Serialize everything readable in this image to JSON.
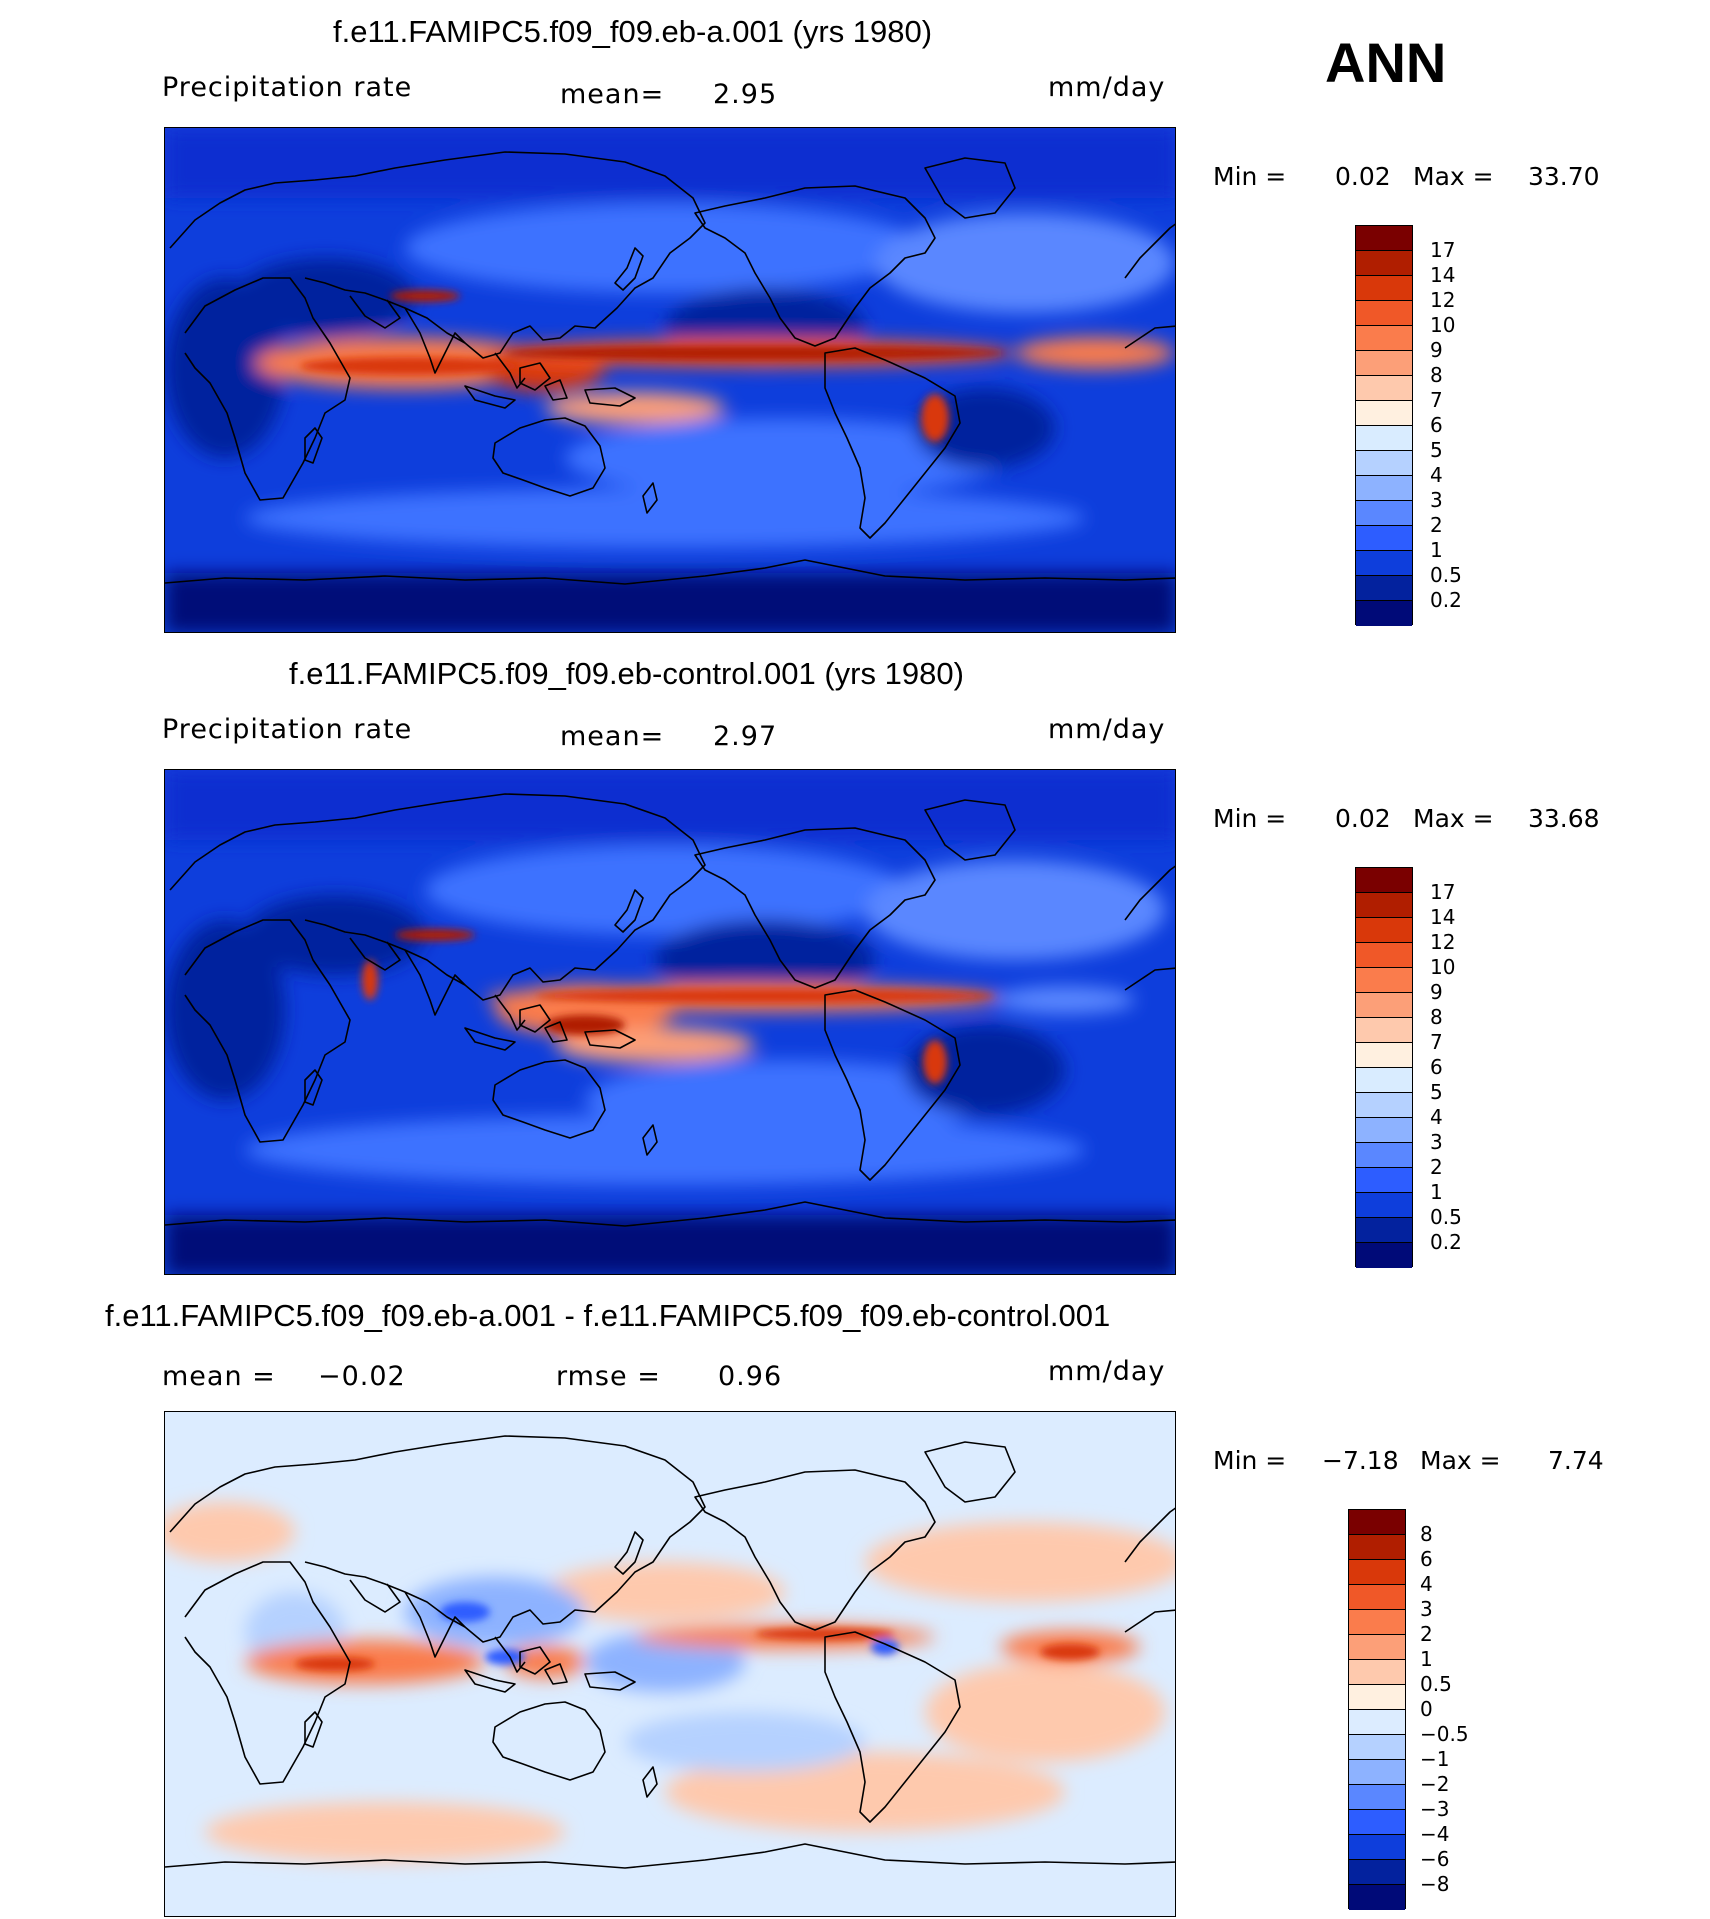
{
  "season_label": "ANN",
  "panels": [
    {
      "title": "f.e11.FAMIPC5.f09_f09.eb-a.001 (yrs 1980)",
      "variable": "Precipitation  rate",
      "mean_label": "mean=",
      "mean_value": "2.95",
      "units": "mm/day",
      "min_label": "Min =",
      "min_value": "0.02",
      "max_label": "Max =",
      "max_value": "33.70",
      "colorbar": {
        "labels": [
          "17",
          "14",
          "12",
          "10",
          "9",
          "8",
          "7",
          "6",
          "5",
          "4",
          "3",
          "2",
          "1",
          "0.5",
          "0.2"
        ],
        "colors": [
          "#7a0000",
          "#b01e00",
          "#d9380a",
          "#f05828",
          "#fa7c4c",
          "#fc9f78",
          "#fec9ad",
          "#fff0e0",
          "#d9ecff",
          "#b5d1ff",
          "#8db2ff",
          "#5a87ff",
          "#2d5dff",
          "#0e3edc",
          "#03229e",
          "#000a78"
        ]
      }
    },
    {
      "title": "f.e11.FAMIPC5.f09_f09.eb-control.001 (yrs 1980)",
      "variable": "Precipitation  rate",
      "mean_label": "mean=",
      "mean_value": "2.97",
      "units": "mm/day",
      "min_label": "Min =",
      "min_value": "0.02",
      "max_label": "Max =",
      "max_value": "33.68",
      "colorbar": {
        "labels": [
          "17",
          "14",
          "12",
          "10",
          "9",
          "8",
          "7",
          "6",
          "5",
          "4",
          "3",
          "2",
          "1",
          "0.5",
          "0.2"
        ],
        "colors": [
          "#7a0000",
          "#b01e00",
          "#d9380a",
          "#f05828",
          "#fa7c4c",
          "#fc9f78",
          "#fec9ad",
          "#fff0e0",
          "#d9ecff",
          "#b5d1ff",
          "#8db2ff",
          "#5a87ff",
          "#2d5dff",
          "#0e3edc",
          "#03229e",
          "#000a78"
        ]
      }
    },
    {
      "title": "f.e11.FAMIPC5.f09_f09.eb-a.001 - f.e11.FAMIPC5.f09_f09.eb-control.001",
      "mean_label": "mean =",
      "mean_value": "−0.02",
      "rmse_label": "rmse =",
      "rmse_value": "0.96",
      "units": "mm/day",
      "min_label": "Min =",
      "min_value": "−7.18",
      "max_label": "Max =",
      "max_value": "7.74",
      "colorbar": {
        "labels": [
          "8",
          "6",
          "4",
          "3",
          "2",
          "1",
          "0.5",
          "0",
          "−0.5",
          "−1",
          "−2",
          "−3",
          "−4",
          "−6",
          "−8"
        ],
        "colors": [
          "#7a0000",
          "#b01e00",
          "#d9380a",
          "#f05828",
          "#fa7c4c",
          "#fc9f78",
          "#fec9ad",
          "#fff0e0",
          "#dcecff",
          "#b5d1ff",
          "#8db2ff",
          "#5a87ff",
          "#2d5dff",
          "#0e3edc",
          "#03229e",
          "#000a78"
        ]
      }
    }
  ],
  "colors": {
    "ocean_deep": "#0a2fd0",
    "ocean_mid": "#3e72ff",
    "dry": "#03229e",
    "very_dry": "#000a78",
    "itcz_core": "#d9380a",
    "itcz_edge": "#fc9f78",
    "diff_background": "#dcecff",
    "diff_pos": "#fec9ad",
    "diff_pos_strong": "#e84a18",
    "diff_neg": "#8db2ff",
    "diff_neg_strong": "#2d5dff"
  }
}
